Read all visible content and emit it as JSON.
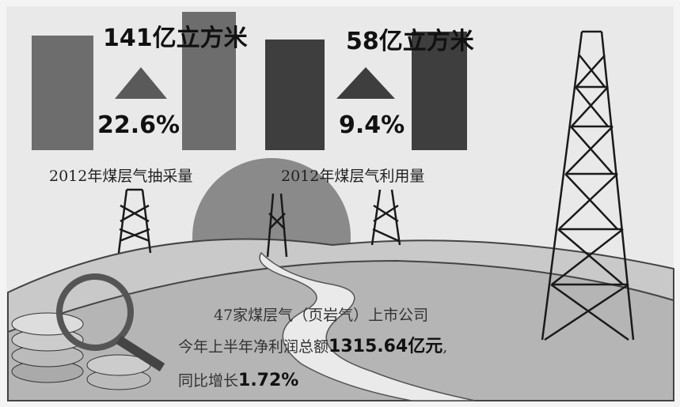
{
  "panels": [
    {
      "amount": "141亿立方米",
      "growth": "22.6%",
      "caption": "2012年煤层气抽采量"
    },
    {
      "amount": "58亿立方米",
      "growth": "9.4%",
      "caption": "2012年煤层气利用量"
    }
  ],
  "summary": {
    "line1": "47家煤层气（页岩气）上市公司",
    "line2_prefix": "今年上半年净利润总额",
    "line2_amount": "1315.64亿元",
    "line2_suffix": ",",
    "line3_prefix": "同比增长",
    "line3_amount": "1.72%"
  }
}
